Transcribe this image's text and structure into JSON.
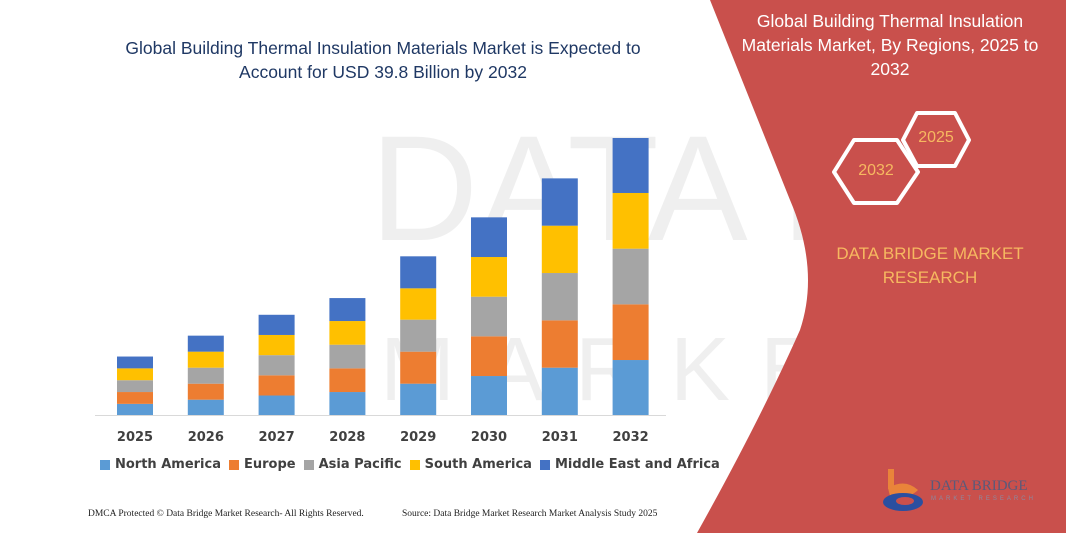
{
  "chart_data": {
    "type": "bar",
    "stacked": true,
    "title": "Global Building Thermal Insulation Materials Market is Expected to Account for USD 39.8 Billion by 2032",
    "xlabel": "",
    "ylabel": "",
    "categories": [
      "2025",
      "2026",
      "2027",
      "2028",
      "2029",
      "2030",
      "2031",
      "2032"
    ],
    "series": [
      {
        "name": "North America",
        "color": "#5b9bd5",
        "values": [
          1.6,
          2.2,
          2.8,
          3.3,
          4.5,
          5.6,
          6.8,
          7.9
        ]
      },
      {
        "name": "Europe",
        "color": "#ed7d31",
        "values": [
          1.7,
          2.3,
          2.9,
          3.4,
          4.6,
          5.7,
          6.8,
          8.0
        ]
      },
      {
        "name": "Asia Pacific",
        "color": "#a5a5a5",
        "values": [
          1.7,
          2.3,
          2.9,
          3.4,
          4.6,
          5.7,
          6.8,
          8.0
        ]
      },
      {
        "name": "South America",
        "color": "#ffc000",
        "values": [
          1.7,
          2.3,
          2.9,
          3.4,
          4.5,
          5.7,
          6.8,
          8.0
        ]
      },
      {
        "name": "Middle East and Africa",
        "color": "#4472c4",
        "values": [
          1.7,
          2.3,
          2.9,
          3.3,
          4.6,
          5.7,
          6.8,
          7.9
        ]
      }
    ],
    "ylim": [
      0,
      40
    ],
    "grid": false,
    "legend_position": "bottom",
    "y_axis_visible": false
  },
  "panel": {
    "title": "Global Building Thermal Insulation Materials Market, By Regions, 2025 to 2032",
    "hex_start": "2025",
    "hex_end": "2032",
    "brand_line1": "DATA BRIDGE MARKET",
    "brand_line2": "RESEARCH",
    "color": "#c9504c",
    "accent": "#f6b860"
  },
  "logo": {
    "name": "DATA BRIDGE",
    "sub": "MARKET RESEARCH"
  },
  "footer": {
    "left": "DMCA Protected © Data Bridge Market Research- All Rights Reserved.",
    "right": "Source: Data Bridge Market Research Market Analysis Study 2025"
  }
}
